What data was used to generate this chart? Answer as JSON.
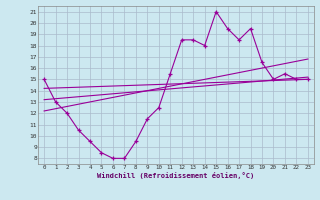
{
  "xlabel": "Windchill (Refroidissement éolien,°C)",
  "background_color": "#cce8f0",
  "grid_color": "#aabbcc",
  "line_color": "#990099",
  "x_hours": [
    0,
    1,
    2,
    3,
    4,
    5,
    6,
    7,
    8,
    9,
    10,
    11,
    12,
    13,
    14,
    15,
    16,
    17,
    18,
    19,
    20,
    21,
    22,
    23
  ],
  "temp_line": [
    15,
    13,
    12,
    10.5,
    9.5,
    8.5,
    8,
    8,
    9.5,
    11.5,
    12.5,
    15.5,
    18.5,
    18.5,
    18,
    21,
    19.5,
    18.5,
    19.5,
    16.5,
    15,
    15.5,
    15,
    15
  ],
  "reg_line1_x": [
    0,
    23
  ],
  "reg_line1_y": [
    12.2,
    16.8
  ],
  "reg_line2_x": [
    0,
    23
  ],
  "reg_line2_y": [
    13.2,
    15.2
  ],
  "reg_line3_x": [
    0,
    23
  ],
  "reg_line3_y": [
    14.2,
    15.0
  ],
  "ylim": [
    7.5,
    21.5
  ],
  "xlim": [
    -0.5,
    23.5
  ],
  "yticks": [
    8,
    9,
    10,
    11,
    12,
    13,
    14,
    15,
    16,
    17,
    18,
    19,
    20,
    21
  ],
  "xticks": [
    0,
    1,
    2,
    3,
    4,
    5,
    6,
    7,
    8,
    9,
    10,
    11,
    12,
    13,
    14,
    15,
    16,
    17,
    18,
    19,
    20,
    21,
    22,
    23
  ]
}
